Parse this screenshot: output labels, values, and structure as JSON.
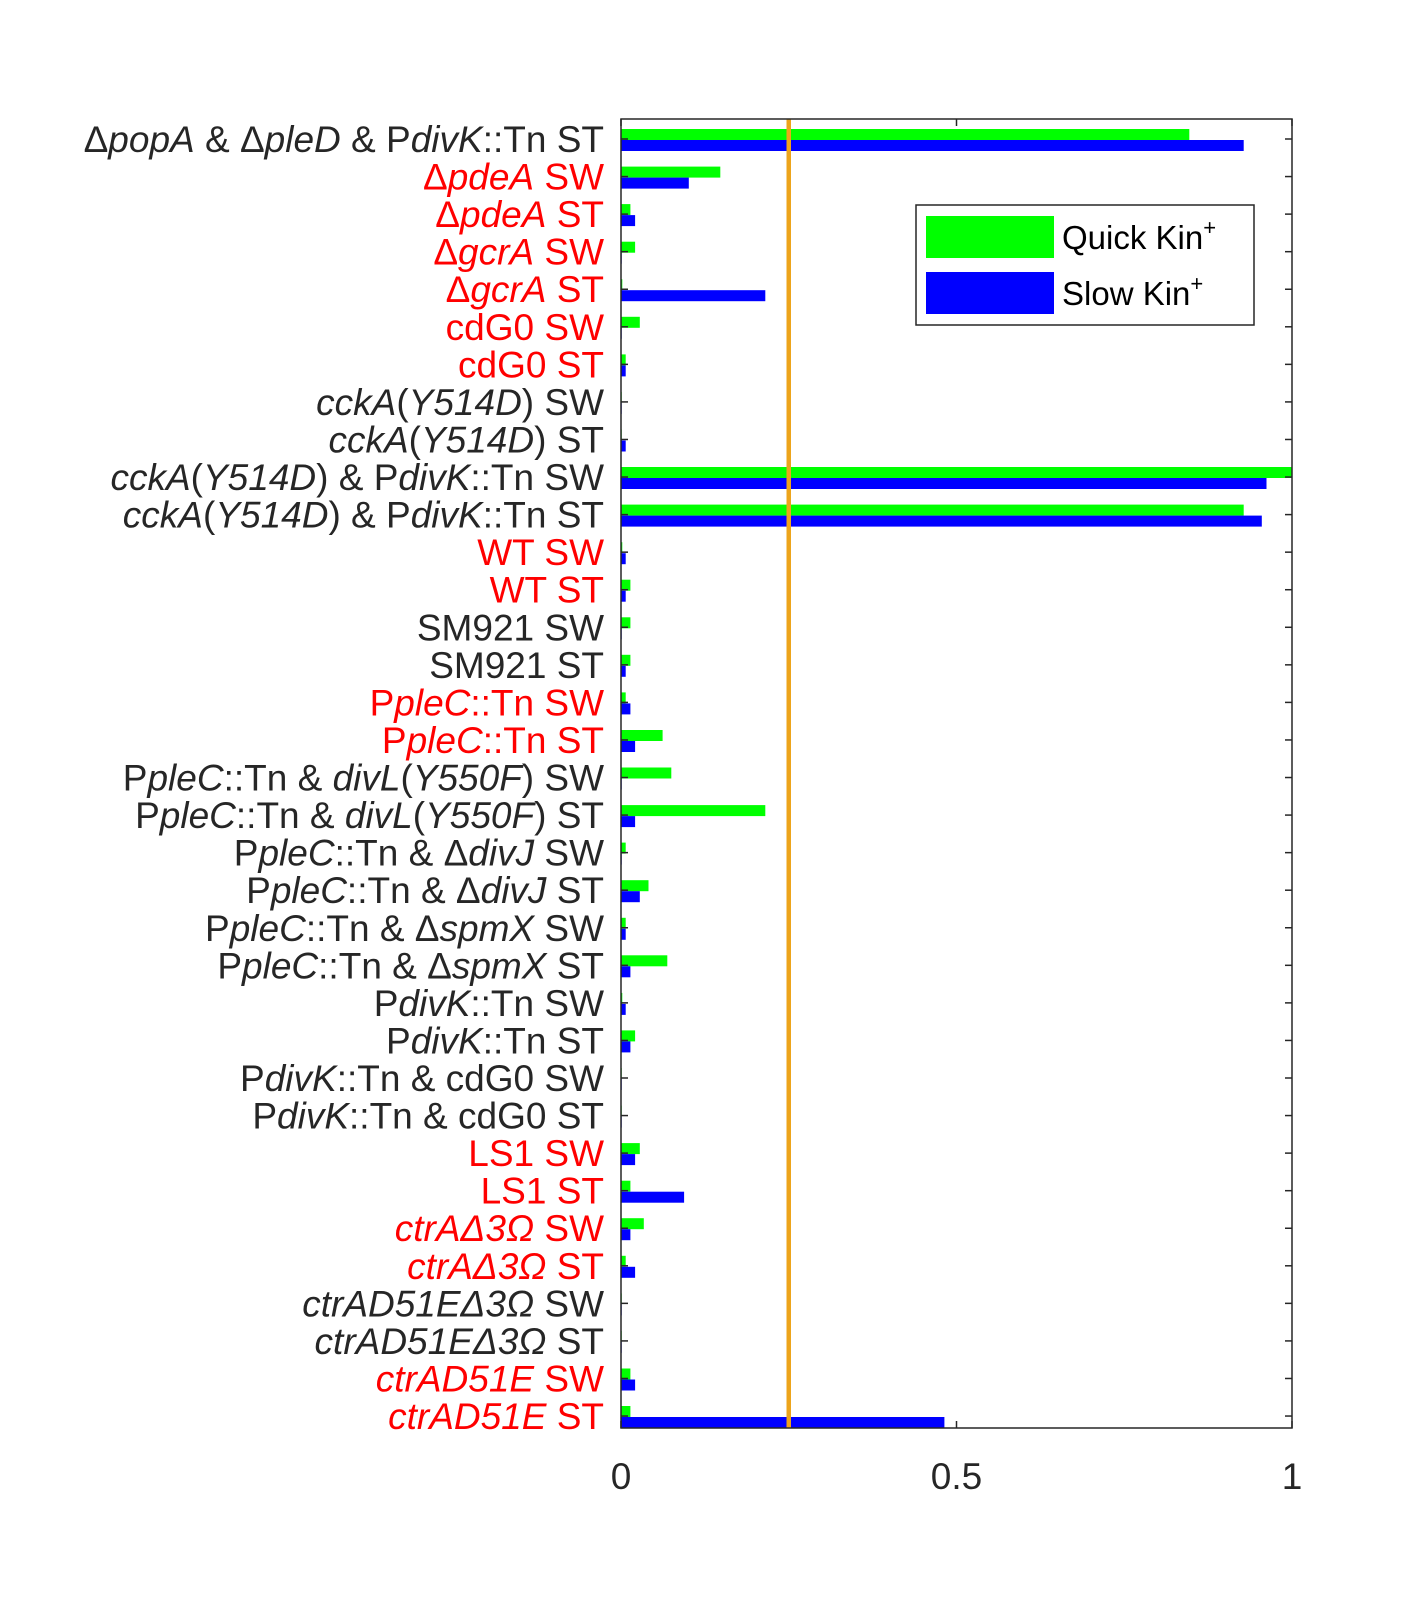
{
  "chart_data": {
    "type": "bar",
    "orientation": "horizontal",
    "title": "",
    "xlabel": "",
    "ylabel": "",
    "xlim": [
      0,
      1
    ],
    "x_ticks": [
      "0",
      "0.5",
      "1"
    ],
    "x_tick_values": [
      0,
      0.5,
      1
    ],
    "reference_line": {
      "x": 0.25,
      "color": "#EDA41B"
    },
    "legend": {
      "placement": "top-right",
      "entries": [
        {
          "base": "Quick Kin",
          "sup": "+",
          "color": "#00FF00"
        },
        {
          "base": "Slow Kin",
          "sup": "+",
          "color": "#0000FF"
        }
      ]
    },
    "categories": [
      {
        "label": [
          [
            "Δ",
            0
          ],
          [
            "popA",
            1
          ],
          [
            " & Δ",
            0
          ],
          [
            "pleD",
            1
          ],
          [
            " & P",
            0
          ],
          [
            "divK",
            1
          ],
          [
            "::Tn ST",
            0
          ]
        ],
        "color": "#262626"
      },
      {
        "label": [
          [
            "Δ",
            0
          ],
          [
            "pdeA",
            1
          ],
          [
            " SW",
            0
          ]
        ],
        "color": "#FF0000"
      },
      {
        "label": [
          [
            "Δ",
            0
          ],
          [
            "pdeA",
            1
          ],
          [
            " ST",
            0
          ]
        ],
        "color": "#FF0000"
      },
      {
        "label": [
          [
            "Δ",
            0
          ],
          [
            "gcrA",
            1
          ],
          [
            " SW",
            0
          ]
        ],
        "color": "#FF0000"
      },
      {
        "label": [
          [
            "Δ",
            0
          ],
          [
            "gcrA",
            1
          ],
          [
            " ST",
            0
          ]
        ],
        "color": "#FF0000"
      },
      {
        "label": [
          [
            "cdG0 SW",
            0
          ]
        ],
        "color": "#FF0000"
      },
      {
        "label": [
          [
            "cdG0 ST",
            0
          ]
        ],
        "color": "#FF0000"
      },
      {
        "label": [
          [
            "cckA",
            1
          ],
          [
            "(",
            0
          ],
          [
            "Y514D",
            1
          ],
          [
            ") SW",
            0
          ]
        ],
        "color": "#262626"
      },
      {
        "label": [
          [
            "cckA",
            1
          ],
          [
            "(",
            0
          ],
          [
            "Y514D",
            1
          ],
          [
            ") ST",
            0
          ]
        ],
        "color": "#262626"
      },
      {
        "label": [
          [
            "cckA",
            1
          ],
          [
            "(",
            0
          ],
          [
            "Y514D",
            1
          ],
          [
            ") & P",
            0
          ],
          [
            "divK",
            1
          ],
          [
            "::Tn SW",
            0
          ]
        ],
        "color": "#262626"
      },
      {
        "label": [
          [
            "cckA",
            1
          ],
          [
            "(",
            0
          ],
          [
            "Y514D",
            1
          ],
          [
            ") & P",
            0
          ],
          [
            "divK",
            1
          ],
          [
            "::Tn ST",
            0
          ]
        ],
        "color": "#262626"
      },
      {
        "label": [
          [
            "WT SW",
            0
          ]
        ],
        "color": "#FF0000"
      },
      {
        "label": [
          [
            "WT ST",
            0
          ]
        ],
        "color": "#FF0000"
      },
      {
        "label": [
          [
            "SM921 SW",
            0
          ]
        ],
        "color": "#262626"
      },
      {
        "label": [
          [
            "SM921 ST",
            0
          ]
        ],
        "color": "#262626"
      },
      {
        "label": [
          [
            "P",
            0
          ],
          [
            "pleC",
            1
          ],
          [
            "::Tn SW",
            0
          ]
        ],
        "color": "#FF0000"
      },
      {
        "label": [
          [
            "P",
            0
          ],
          [
            "pleC",
            1
          ],
          [
            "::Tn ST",
            0
          ]
        ],
        "color": "#FF0000"
      },
      {
        "label": [
          [
            "P",
            0
          ],
          [
            "pleC",
            1
          ],
          [
            "::Tn & ",
            0
          ],
          [
            "divL",
            1
          ],
          [
            "(",
            0
          ],
          [
            "Y550F",
            1
          ],
          [
            ") SW",
            0
          ]
        ],
        "color": "#262626"
      },
      {
        "label": [
          [
            "P",
            0
          ],
          [
            "pleC",
            1
          ],
          [
            "::Tn & ",
            0
          ],
          [
            "divL",
            1
          ],
          [
            "(",
            0
          ],
          [
            "Y550F",
            1
          ],
          [
            ") ST",
            0
          ]
        ],
        "color": "#262626"
      },
      {
        "label": [
          [
            "P",
            0
          ],
          [
            "pleC",
            1
          ],
          [
            "::Tn & Δ",
            0
          ],
          [
            "divJ",
            1
          ],
          [
            " SW",
            0
          ]
        ],
        "color": "#262626"
      },
      {
        "label": [
          [
            "P",
            0
          ],
          [
            "pleC",
            1
          ],
          [
            "::Tn & Δ",
            0
          ],
          [
            "divJ",
            1
          ],
          [
            " ST",
            0
          ]
        ],
        "color": "#262626"
      },
      {
        "label": [
          [
            "P",
            0
          ],
          [
            "pleC",
            1
          ],
          [
            "::Tn & Δ",
            0
          ],
          [
            "spmX",
            1
          ],
          [
            " SW",
            0
          ]
        ],
        "color": "#262626"
      },
      {
        "label": [
          [
            "P",
            0
          ],
          [
            "pleC",
            1
          ],
          [
            "::Tn & Δ",
            0
          ],
          [
            "spmX",
            1
          ],
          [
            " ST",
            0
          ]
        ],
        "color": "#262626"
      },
      {
        "label": [
          [
            "P",
            0
          ],
          [
            "divK",
            1
          ],
          [
            "::Tn SW",
            0
          ]
        ],
        "color": "#262626"
      },
      {
        "label": [
          [
            "P",
            0
          ],
          [
            "divK",
            1
          ],
          [
            "::Tn ST",
            0
          ]
        ],
        "color": "#262626"
      },
      {
        "label": [
          [
            "P",
            0
          ],
          [
            "divK",
            1
          ],
          [
            "::Tn & cdG0 SW",
            0
          ]
        ],
        "color": "#262626"
      },
      {
        "label": [
          [
            "P",
            0
          ],
          [
            "divK",
            1
          ],
          [
            "::Tn & cdG0 ST",
            0
          ]
        ],
        "color": "#262626"
      },
      {
        "label": [
          [
            "LS1 SW",
            0
          ]
        ],
        "color": "#FF0000"
      },
      {
        "label": [
          [
            "LS1 ST",
            0
          ]
        ],
        "color": "#FF0000"
      },
      {
        "label": [
          [
            "ctrAΔ3Ω",
            1
          ],
          [
            " SW",
            0
          ]
        ],
        "color": "#FF0000"
      },
      {
        "label": [
          [
            "ctrAΔ3Ω",
            1
          ],
          [
            " ST",
            0
          ]
        ],
        "color": "#FF0000"
      },
      {
        "label": [
          [
            "ctrAD51EΔ3Ω",
            1
          ],
          [
            " SW",
            0
          ]
        ],
        "color": "#262626"
      },
      {
        "label": [
          [
            "ctrAD51EΔ3Ω",
            1
          ],
          [
            " ST",
            0
          ]
        ],
        "color": "#262626"
      },
      {
        "label": [
          [
            "ctrAD51E",
            1
          ],
          [
            " SW",
            0
          ]
        ],
        "color": "#FF0000"
      },
      {
        "label": [
          [
            "ctrAD51E",
            1
          ],
          [
            " ST",
            0
          ]
        ],
        "color": "#FF0000"
      }
    ],
    "series": [
      {
        "name": "Quick Kin+",
        "color": "#00FF00",
        "values": [
          0.847,
          0.148,
          0.014,
          0.021,
          0.002,
          0.028,
          0.007,
          0.001,
          0.001,
          1.0,
          0.928,
          0.002,
          0.014,
          0.014,
          0.014,
          0.007,
          0.062,
          0.075,
          0.215,
          0.007,
          0.041,
          0.007,
          0.069,
          0.002,
          0.021,
          0.001,
          0.001,
          0.028,
          0.014,
          0.034,
          0.007,
          0.001,
          0.001,
          0.014,
          0.014
        ]
      },
      {
        "name": "Slow Kin+",
        "color": "#0000FF",
        "values": [
          0.928,
          0.101,
          0.021,
          0.001,
          0.215,
          0.001,
          0.007,
          0.001,
          0.007,
          0.962,
          0.955,
          0.007,
          0.007,
          0.001,
          0.007,
          0.014,
          0.021,
          0.001,
          0.021,
          0.001,
          0.028,
          0.007,
          0.014,
          0.007,
          0.014,
          0.001,
          0.001,
          0.021,
          0.094,
          0.014,
          0.021,
          0.001,
          0.001,
          0.021,
          0.482
        ]
      }
    ]
  }
}
